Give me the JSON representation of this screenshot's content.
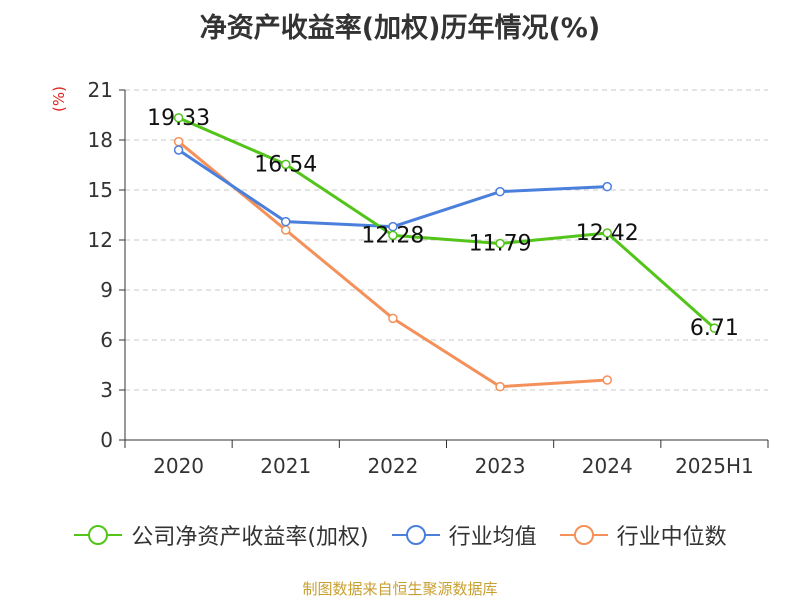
{
  "chart_data": {
    "type": "line",
    "title": "净资产收益率(加权)历年情况(%)",
    "ylabel": "(%)",
    "xlabel": "",
    "categories": [
      "2020",
      "2021",
      "2022",
      "2023",
      "2024",
      "2025H1"
    ],
    "ylim": [
      0,
      21
    ],
    "yticks": [
      0,
      3,
      6,
      9,
      12,
      15,
      18,
      21
    ],
    "grid": true,
    "legend_position": "bottom",
    "series": [
      {
        "name": "公司净资产收益率(加权)",
        "color": "#52c41a",
        "values": [
          19.33,
          16.54,
          12.28,
          11.79,
          12.42,
          6.71
        ],
        "data_labels": true
      },
      {
        "name": "行业均值",
        "color": "#4a7fdc",
        "values": [
          17.4,
          13.1,
          12.8,
          14.9,
          15.2,
          null
        ],
        "data_labels": false
      },
      {
        "name": "行业中位数",
        "color": "#f4905a",
        "values": [
          17.9,
          12.6,
          7.3,
          3.2,
          3.6,
          null
        ],
        "data_labels": false
      }
    ]
  },
  "source": "制图数据来自恒生聚源数据库"
}
